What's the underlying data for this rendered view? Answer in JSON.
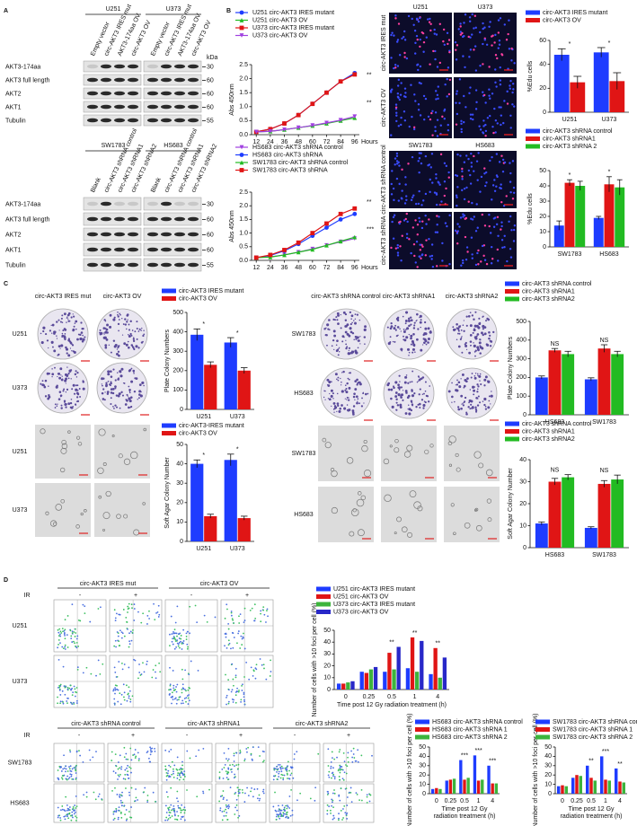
{
  "panel_labels": [
    "A",
    "B",
    "C",
    "D"
  ],
  "western": [
    {
      "groups": [
        {
          "name": "U251",
          "lanes": [
            "Empty vector",
            "circ-AKT3 IRES mut",
            "AKT3-174aa OV",
            "circ-AKT3 OV"
          ]
        },
        {
          "name": "U373",
          "lanes": [
            "Empty vector",
            "circ-AKT3 IRES mut",
            "AKT3-174aa OV",
            "circ-AKT3 OV"
          ]
        }
      ],
      "bands": [
        "AKT3-174aa",
        "AKT3 full length",
        "AKT2",
        "AKT1",
        "Tubulin"
      ],
      "kda": [
        30,
        60,
        60,
        60,
        55
      ],
      "kda_unit": "kDa"
    },
    {
      "groups": [
        {
          "name": "SW1783",
          "lanes": [
            "Blank",
            "circ-AKT3 shRNA control",
            "circ-AKT3 shRNA1",
            "circ-AKT3 shRNA2"
          ]
        },
        {
          "name": "HS683",
          "lanes": [
            "Blank",
            "circ-AKT3 shRNA control",
            "circ-AKT3 shRNA1",
            "circ-AKT3 shRNA2"
          ]
        }
      ],
      "bands": [
        "AKT3-174aa",
        "AKT3 full length",
        "AKT2",
        "AKT1",
        "Tubulin"
      ],
      "kda": [
        30,
        60,
        60,
        60,
        55
      ]
    }
  ],
  "micrographs": [
    {
      "columns": [
        "U251",
        "U373"
      ],
      "rows": [
        "circ-AKT3 IRES mut",
        "circ-AKT3 OV"
      ]
    },
    {
      "columns": [
        "SW1783",
        "HS683"
      ],
      "rows": [
        "circ-AKT3 shRNA control",
        "circ-AKT3 shRNA"
      ]
    }
  ],
  "plates": [
    {
      "columns": [
        "circ-AKT3 IRES mut",
        "circ-AKT3 OV"
      ],
      "rows": [
        "U251",
        "U373"
      ]
    },
    {
      "rows": [
        "U251",
        "U373"
      ]
    },
    {
      "columns": [
        "circ-AKT3 shRNA control",
        "circ-AKT3 shRNA1",
        "circ-AKT3 shRNA2"
      ],
      "rows": [
        "SW1783",
        "HS683"
      ]
    },
    {
      "rows": [
        "SW1783",
        "HS683"
      ]
    }
  ],
  "flow": [
    {
      "groups": [
        "circ-AKT3 IRES mut",
        "circ-AKT3 OV"
      ],
      "ir": "IR",
      "signs": [
        "-",
        "+",
        "-",
        "+"
      ],
      "rows": [
        "U251",
        "U373"
      ]
    },
    {
      "groups": [
        "circ-AKT3 shRNA control",
        "circ-AKT3 shRNA1",
        "circ-AKT3 shRNA2"
      ],
      "ir": "IR",
      "signs": [
        "-",
        "+",
        "-",
        "+",
        "-",
        "+"
      ],
      "rows": [
        "SW1783",
        "HS683"
      ]
    }
  ],
  "chart_data": [
    {
      "type": "line",
      "ylabel": "Abs 450nm",
      "xlabel": "Hours",
      "x": [
        12,
        24,
        36,
        48,
        60,
        72,
        84,
        96
      ],
      "xlim": [
        8,
        100
      ],
      "xticks": [
        12,
        24,
        36,
        48,
        60,
        72,
        84,
        96
      ],
      "ylim": [
        0,
        2.5
      ],
      "yticks": [
        {
          "value": 0,
          "label": "0.0"
        },
        0.5,
        {
          "value": 1,
          "label": "1.0"
        },
        1.5,
        {
          "value": 2,
          "label": "2.0"
        },
        2.5
      ],
      "annotations": [
        "**",
        "**"
      ],
      "series": [
        {
          "name": "U251 circ-AKT3 IRES mutant",
          "color": "#1e3cff",
          "marker": "circle",
          "values": [
            0.1,
            0.2,
            0.4,
            0.7,
            1.1,
            1.5,
            1.9,
            2.2
          ]
        },
        {
          "name": "U251 circ-AKT3 OV",
          "color": "#22bb22",
          "marker": "triangle",
          "values": [
            0.1,
            0.12,
            0.18,
            0.25,
            0.32,
            0.4,
            0.5,
            0.6
          ]
        },
        {
          "name": "U373 circ-AKT3 IRES mutant",
          "color": "#e01515",
          "marker": "square",
          "values": [
            0.1,
            0.2,
            0.4,
            0.7,
            1.1,
            1.5,
            1.9,
            2.15
          ]
        },
        {
          "name": "U373 circ-AKT3 OV",
          "color": "#a040e0",
          "marker": "triangle-down",
          "values": [
            0.1,
            0.12,
            0.18,
            0.25,
            0.33,
            0.42,
            0.52,
            0.65
          ]
        }
      ]
    },
    {
      "type": "line",
      "ylabel": "Abs 450nm",
      "xlabel": "Hours",
      "x": [
        12,
        24,
        36,
        48,
        60,
        72,
        84,
        96
      ],
      "xlim": [
        8,
        100
      ],
      "xticks": [
        12,
        24,
        36,
        48,
        60,
        72,
        84,
        96
      ],
      "ylim": [
        0,
        2.5
      ],
      "yticks": [
        {
          "value": 0,
          "label": "0.0"
        },
        0.5,
        {
          "value": 1,
          "label": "1.0"
        },
        1.5,
        {
          "value": 2,
          "label": "2.0"
        },
        2.5
      ],
      "annotations": [
        "**",
        "***"
      ],
      "series": [
        {
          "name": "HS683 circ-AKT3 shRNA control",
          "color": "#a040e0",
          "marker": "triangle-down",
          "values": [
            0.1,
            0.13,
            0.2,
            0.3,
            0.42,
            0.55,
            0.68,
            0.8
          ]
        },
        {
          "name": "HS683 circ-AKT3 shRNA",
          "color": "#1e3cff",
          "marker": "circle",
          "values": [
            0.1,
            0.18,
            0.35,
            0.6,
            0.9,
            1.2,
            1.5,
            1.7
          ]
        },
        {
          "name": "SW1783 circ-AKT3 shRNA control",
          "color": "#22bb22",
          "marker": "triangle",
          "values": [
            0.1,
            0.12,
            0.2,
            0.3,
            0.4,
            0.55,
            0.7,
            0.85
          ]
        },
        {
          "name": "SW1783 circ-AKT3 shRNA",
          "color": "#e01515",
          "marker": "square",
          "values": [
            0.1,
            0.2,
            0.38,
            0.65,
            1.0,
            1.35,
            1.7,
            1.9
          ]
        }
      ]
    },
    {
      "type": "bar",
      "ylabel": "%Edu cells",
      "categories": [
        "U251",
        "U373"
      ],
      "ylim": [
        0,
        60
      ],
      "yticks": [
        0,
        20,
        40,
        60
      ],
      "annotations": [
        "*",
        "*"
      ],
      "series": [
        {
          "name": "circ-AKT3 IRES mutant",
          "color": "#1e3cff",
          "values": [
            48,
            50
          ],
          "errors": [
            5,
            4
          ]
        },
        {
          "name": "circ-AKT3  OV",
          "color": "#e01515",
          "values": [
            25,
            26
          ],
          "errors": [
            5,
            7
          ]
        }
      ]
    },
    {
      "type": "bar",
      "ylabel": "%Edu cells",
      "categories": [
        "SW1783",
        "HS683"
      ],
      "ylim": [
        0,
        50
      ],
      "yticks": [
        0,
        10,
        20,
        30,
        40,
        50
      ],
      "annotations": [
        "*",
        "*"
      ],
      "series": [
        {
          "name": "circ-AKT3 shRNA control",
          "color": "#1e3cff",
          "values": [
            14,
            19
          ],
          "errors": [
            3,
            1
          ]
        },
        {
          "name": "circ-AKT3 shRNA1",
          "color": "#e01515",
          "values": [
            42,
            41
          ],
          "errors": [
            2,
            5
          ]
        },
        {
          "name": "circ-AKT3 shRNA 2",
          "color": "#22bb22",
          "values": [
            40,
            39
          ],
          "errors": [
            3,
            5
          ]
        }
      ]
    },
    {
      "type": "bar",
      "ylabel": "Plate Colony Numbers",
      "categories": [
        "U251",
        "U373"
      ],
      "ylim": [
        0,
        500
      ],
      "yticks": [
        0,
        100,
        200,
        300,
        400,
        500
      ],
      "annotations": [
        "*",
        "*"
      ],
      "series": [
        {
          "name": "circ-AKT3 IRES mutant",
          "color": "#1e3cff",
          "values": [
            385,
            345
          ],
          "errors": [
            30,
            25
          ]
        },
        {
          "name": "circ-AKT3 OV",
          "color": "#e01515",
          "values": [
            230,
            200
          ],
          "errors": [
            15,
            15
          ]
        }
      ]
    },
    {
      "type": "bar",
      "ylabel": "Soft Agar Colony Number",
      "categories": [
        "U251",
        "U373"
      ],
      "ylim": [
        0,
        50
      ],
      "yticks": [
        0,
        10,
        20,
        30,
        40,
        50
      ],
      "annotations": [
        "*",
        "*"
      ],
      "series": [
        {
          "name": "circ-AKT3-IRES mutant",
          "color": "#1e3cff",
          "values": [
            40,
            42
          ],
          "errors": [
            2,
            3
          ]
        },
        {
          "name": "circ-AKT3 OV",
          "color": "#e01515",
          "values": [
            13,
            12
          ],
          "errors": [
            1,
            1
          ]
        }
      ]
    },
    {
      "type": "bar",
      "ylabel": "Plate Colony Numbers",
      "categories": [
        "HS683",
        "SW1783"
      ],
      "ylim": [
        0,
        500
      ],
      "yticks": [
        0,
        100,
        200,
        300,
        400,
        500
      ],
      "annotations": [
        "NS",
        "NS"
      ],
      "series": [
        {
          "name": "circ-AKT3 shRNA control",
          "color": "#1e3cff",
          "values": [
            200,
            190
          ],
          "errors": [
            8,
            8
          ]
        },
        {
          "name": "circ-AKT3 shRNA1",
          "color": "#e01515",
          "values": [
            345,
            355
          ],
          "errors": [
            10,
            20
          ]
        },
        {
          "name": "circ-AKT3 shRNA2",
          "color": "#22bb22",
          "values": [
            325,
            325
          ],
          "errors": [
            15,
            15
          ]
        }
      ]
    },
    {
      "type": "bar",
      "ylabel": "Soft Agar Colony Number",
      "categories": [
        "HS683",
        "SW1783"
      ],
      "ylim": [
        0,
        40
      ],
      "yticks": [
        0,
        10,
        20,
        30,
        40
      ],
      "annotations": [
        "NS",
        "NS"
      ],
      "series": [
        {
          "name": "circ-AKT3 shRNA control",
          "color": "#1e3cff",
          "values": [
            11,
            9
          ],
          "errors": [
            0.7,
            0.5
          ]
        },
        {
          "name": "circ-AKT3 shRNA1",
          "color": "#e01515",
          "values": [
            30,
            29
          ],
          "errors": [
            1.5,
            1.5
          ]
        },
        {
          "name": "circ-AKT3 shRNA2",
          "color": "#22bb22",
          "values": [
            32,
            31
          ],
          "errors": [
            1.2,
            2
          ]
        }
      ]
    },
    {
      "type": "bar",
      "ylabel": "Number of cells with >10 foci per cell (%)",
      "xlabel": [
        "Time post 12 Gy radiation treatment (h)"
      ],
      "categories": [
        "0",
        "0.25",
        "0.5",
        "1",
        "4"
      ],
      "ylim": [
        0,
        50
      ],
      "yticks": [
        0,
        10,
        20,
        30,
        40,
        50
      ],
      "annotations": [
        null,
        null,
        "**",
        "**",
        "**"
      ],
      "series": [
        {
          "name": "U251 circ-AKT3 IRES mutant",
          "color": "#1e3cff",
          "values": [
            5,
            15,
            15,
            18,
            13
          ]
        },
        {
          "name": "U251 circ-AKT3 OV",
          "color": "#e01515",
          "values": [
            5,
            14,
            31,
            44,
            35
          ]
        },
        {
          "name": "U373 circ-AKT3 IRES mutant",
          "color": "#3cb43c",
          "values": [
            6,
            17,
            17,
            15,
            10
          ]
        },
        {
          "name": "U373 circ-AKT3 OV",
          "color": "#2828c8",
          "values": [
            7,
            19,
            36,
            41,
            27
          ]
        }
      ]
    },
    {
      "type": "bar",
      "ylabel": "Number of cells with >10 foci per cell (%)",
      "xlabel": [
        "Time post 12 Gy",
        "radiation treatment (h)"
      ],
      "categories": [
        "0",
        "0.25",
        "0.5",
        "1",
        "4"
      ],
      "ylim": [
        0,
        50
      ],
      "yticks": [
        0,
        10,
        20,
        30,
        40,
        50
      ],
      "annotations": [
        null,
        null,
        "***",
        "***",
        "***"
      ],
      "series": [
        {
          "name": "HS683 circ-AKT3 shRNA control",
          "color": "#1e3cff",
          "values": [
            5,
            14,
            36,
            41,
            30
          ]
        },
        {
          "name": "HS683 circ-AKT3 shRNA 1",
          "color": "#e01515",
          "values": [
            6,
            15,
            15,
            14,
            11
          ]
        },
        {
          "name": "HS683 circ-AKT3 shRNA 2",
          "color": "#3cb43c",
          "values": [
            5,
            16,
            17,
            15,
            11
          ]
        }
      ]
    },
    {
      "type": "bar",
      "ylabel": "Number of cells with >10 foci per cell (%)",
      "xlabel": [
        "Time post 12 Gy",
        "radiation treatment (h)"
      ],
      "categories": [
        "0",
        "0.25",
        "0.5",
        "1",
        "4"
      ],
      "ylim": [
        0,
        50
      ],
      "yticks": [
        0,
        10,
        20,
        30,
        40,
        50
      ],
      "annotations": [
        null,
        null,
        "**",
        "***",
        "**"
      ],
      "series": [
        {
          "name": "SW1783 circ-AKT3 shRNA control",
          "color": "#1e3cff",
          "values": [
            8,
            17,
            30,
            40,
            27
          ]
        },
        {
          "name": "SW1783 circ-AKT3 shRNA 1",
          "color": "#e01515",
          "values": [
            9,
            20,
            17,
            15,
            13
          ]
        },
        {
          "name": "SW1783 circ-AKT3 shRNA 2",
          "color": "#3cb43c",
          "values": [
            8,
            19,
            14,
            14,
            12
          ]
        }
      ]
    }
  ]
}
